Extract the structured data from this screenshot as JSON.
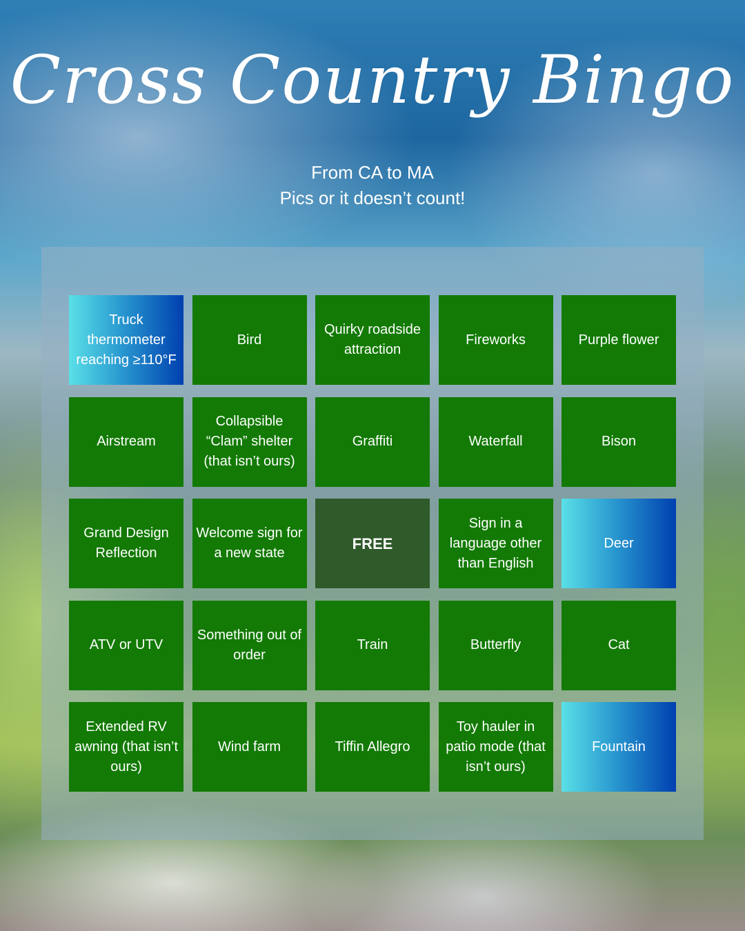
{
  "title": "Cross Country Bingo",
  "subtitle_lines": [
    "From CA to MA",
    "Pics or it doesn’t count!"
  ],
  "colors": {
    "cell": "#137a05",
    "free": "#2f5a2a",
    "highlight_start": "#5ae0e8",
    "highlight_end": "#0040b0"
  },
  "cells": [
    {
      "label": "Truck thermometer reaching ≥110°F",
      "highlighted": true
    },
    {
      "label": "Bird"
    },
    {
      "label": "Quirky roadside attraction"
    },
    {
      "label": "Fireworks"
    },
    {
      "label": "Purple flower"
    },
    {
      "label": "Airstream"
    },
    {
      "label": "Collapsible “Clam” shelter (that isn’t ours)"
    },
    {
      "label": "Graffiti"
    },
    {
      "label": "Waterfall"
    },
    {
      "label": "Bison"
    },
    {
      "label": "Grand Design Reflection"
    },
    {
      "label": "Welcome sign for a new state"
    },
    {
      "label": "FREE",
      "free": true
    },
    {
      "label": "Sign in a language other than English"
    },
    {
      "label": "Deer",
      "highlighted": true
    },
    {
      "label": "ATV or UTV"
    },
    {
      "label": "Something out of order"
    },
    {
      "label": "Train"
    },
    {
      "label": "Butterfly"
    },
    {
      "label": "Cat"
    },
    {
      "label": "Extended RV awning (that isn’t ours)"
    },
    {
      "label": "Wind farm"
    },
    {
      "label": "Tiffin Allegro"
    },
    {
      "label": "Toy hauler in patio mode (that isn’t ours)"
    },
    {
      "label": "Fountain",
      "highlighted": true
    }
  ]
}
